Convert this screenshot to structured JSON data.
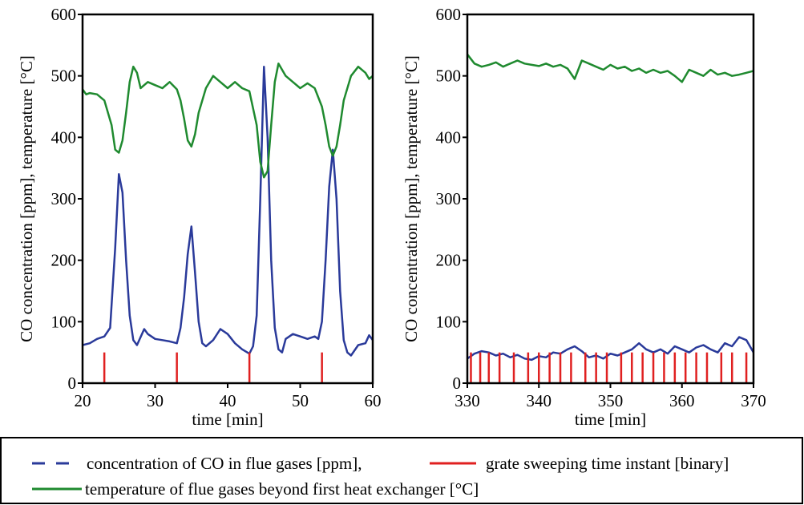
{
  "colors": {
    "co": "#2a3a9a",
    "temp": "#1f8a2f",
    "sweep": "#e02020",
    "frame": "#000000"
  },
  "legend": {
    "co_label": "concentration of CO in flue gases [ppm],",
    "sweep_label": "grate sweeping time instant [binary]",
    "temp_label": "temperature of flue gases beyond first heat exchanger [°C]"
  },
  "chart_data": [
    {
      "type": "line",
      "xlabel": "time [min]",
      "ylabel": "CO concentration [ppm], temperature [°C]",
      "xlim": [
        20,
        60
      ],
      "ylim": [
        0,
        600
      ],
      "xticks": [
        20,
        30,
        40,
        50,
        60
      ],
      "yticks": [
        0,
        100,
        200,
        300,
        400,
        500,
        600
      ],
      "grid": false,
      "series": [
        {
          "name": "concentration of CO in flue gases [ppm]",
          "color_key": "co",
          "x": [
            20,
            21,
            22,
            23,
            23.8,
            24.5,
            25.0,
            25.5,
            26.0,
            26.5,
            27.0,
            27.5,
            28.0,
            28.5,
            29.0,
            30,
            31,
            32,
            33,
            33.5,
            34.0,
            34.5,
            35.0,
            35.5,
            36.0,
            36.5,
            37.0,
            38.0,
            39.0,
            40.0,
            41.0,
            42.0,
            43.0,
            43.5,
            44.0,
            44.5,
            45.0,
            45.5,
            46.0,
            46.5,
            47.0,
            47.5,
            48.0,
            49.0,
            50.0,
            51.0,
            52.0,
            52.5,
            53.0,
            53.5,
            54.0,
            54.5,
            55.0,
            55.5,
            56.0,
            56.5,
            57.0,
            58.0,
            59.0,
            59.5,
            60
          ],
          "y": [
            62,
            65,
            72,
            76,
            90,
            220,
            340,
            310,
            200,
            110,
            70,
            62,
            75,
            88,
            80,
            72,
            70,
            68,
            65,
            90,
            140,
            210,
            255,
            180,
            100,
            65,
            60,
            70,
            88,
            80,
            65,
            55,
            48,
            60,
            110,
            300,
            515,
            400,
            200,
            90,
            55,
            50,
            72,
            80,
            76,
            72,
            76,
            72,
            100,
            200,
            320,
            380,
            300,
            150,
            70,
            50,
            45,
            62,
            65,
            78,
            70
          ]
        },
        {
          "name": "temperature of flue gases beyond first heat exchanger [°C]",
          "color_key": "temp",
          "x": [
            20,
            20.5,
            21,
            22,
            23,
            24,
            24.5,
            25,
            25.5,
            26,
            26.5,
            27,
            27.5,
            28,
            29,
            30,
            31,
            32,
            33,
            33.5,
            34,
            34.5,
            35,
            35.5,
            36,
            37,
            38,
            39,
            40,
            41,
            42,
            43,
            44,
            44.5,
            45,
            45.5,
            46,
            46.5,
            47,
            48,
            49,
            50,
            51,
            52,
            53,
            53.5,
            54,
            54.5,
            55,
            55.5,
            56,
            57,
            58,
            59,
            59.5,
            60
          ],
          "y": [
            478,
            470,
            472,
            470,
            460,
            420,
            380,
            375,
            395,
            440,
            490,
            515,
            505,
            480,
            490,
            485,
            480,
            490,
            478,
            460,
            430,
            395,
            385,
            405,
            440,
            480,
            500,
            490,
            480,
            490,
            480,
            475,
            420,
            360,
            335,
            345,
            420,
            490,
            520,
            500,
            490,
            480,
            488,
            480,
            450,
            420,
            385,
            370,
            385,
            420,
            460,
            500,
            515,
            505,
            495,
            500
          ]
        },
        {
          "name": "grate sweeping time instant [binary]",
          "color_key": "sweep",
          "type": "impulse",
          "x": [
            23,
            33,
            43,
            53
          ],
          "y": [
            50,
            50,
            50,
            50
          ]
        }
      ]
    },
    {
      "type": "line",
      "xlabel": "time [min]",
      "ylabel": "CO concentration [ppm], temperature [°C]",
      "xlim": [
        330,
        370
      ],
      "ylim": [
        0,
        600
      ],
      "xticks": [
        330,
        340,
        350,
        360,
        370
      ],
      "yticks": [
        0,
        100,
        200,
        300,
        400,
        500,
        600
      ],
      "grid": false,
      "series": [
        {
          "name": "concentration of CO in flue gases [ppm]",
          "color_key": "co",
          "x": [
            330,
            331,
            332,
            333,
            334,
            335,
            336,
            337,
            338,
            339,
            340,
            341,
            342,
            343,
            344,
            345,
            346,
            347,
            348,
            349,
            350,
            351,
            352,
            353,
            354,
            355,
            356,
            357,
            358,
            359,
            360,
            361,
            362,
            363,
            364,
            365,
            366,
            367,
            368,
            369,
            370
          ],
          "y": [
            40,
            48,
            52,
            50,
            45,
            48,
            42,
            46,
            40,
            38,
            44,
            42,
            50,
            48,
            55,
            60,
            52,
            42,
            45,
            40,
            48,
            45,
            50,
            55,
            65,
            55,
            50,
            55,
            48,
            60,
            55,
            50,
            58,
            62,
            55,
            50,
            65,
            60,
            75,
            70,
            50
          ]
        },
        {
          "name": "temperature of flue gases beyond first heat exchanger [°C]",
          "color_key": "temp",
          "x": [
            330,
            331,
            332,
            333,
            334,
            335,
            336,
            337,
            338,
            339,
            340,
            341,
            342,
            343,
            344,
            345,
            346,
            347,
            348,
            349,
            350,
            351,
            352,
            353,
            354,
            355,
            356,
            357,
            358,
            359,
            360,
            361,
            362,
            363,
            364,
            365,
            366,
            367,
            368,
            369,
            370
          ],
          "y": [
            535,
            520,
            515,
            518,
            522,
            515,
            520,
            525,
            520,
            518,
            516,
            520,
            515,
            518,
            512,
            495,
            525,
            520,
            515,
            510,
            518,
            512,
            515,
            508,
            512,
            505,
            510,
            505,
            508,
            500,
            490,
            510,
            505,
            500,
            510,
            502,
            505,
            500,
            502,
            505,
            508
          ]
        },
        {
          "name": "grate sweeping time instant [binary]",
          "color_key": "sweep",
          "type": "impulse",
          "x": [
            330.5,
            331.8,
            333.0,
            334.5,
            336.5,
            338.5,
            340.0,
            341.5,
            343.0,
            344.5,
            346.5,
            348.0,
            349.5,
            351.5,
            353.0,
            354.5,
            356.0,
            357.5,
            359.0,
            360.5,
            362.0,
            363.5,
            365.5,
            367.0,
            369.0
          ],
          "y": [
            50,
            50,
            50,
            50,
            50,
            50,
            50,
            50,
            50,
            50,
            50,
            50,
            50,
            50,
            50,
            50,
            50,
            50,
            50,
            50,
            50,
            50,
            50,
            50,
            50
          ]
        }
      ]
    }
  ]
}
